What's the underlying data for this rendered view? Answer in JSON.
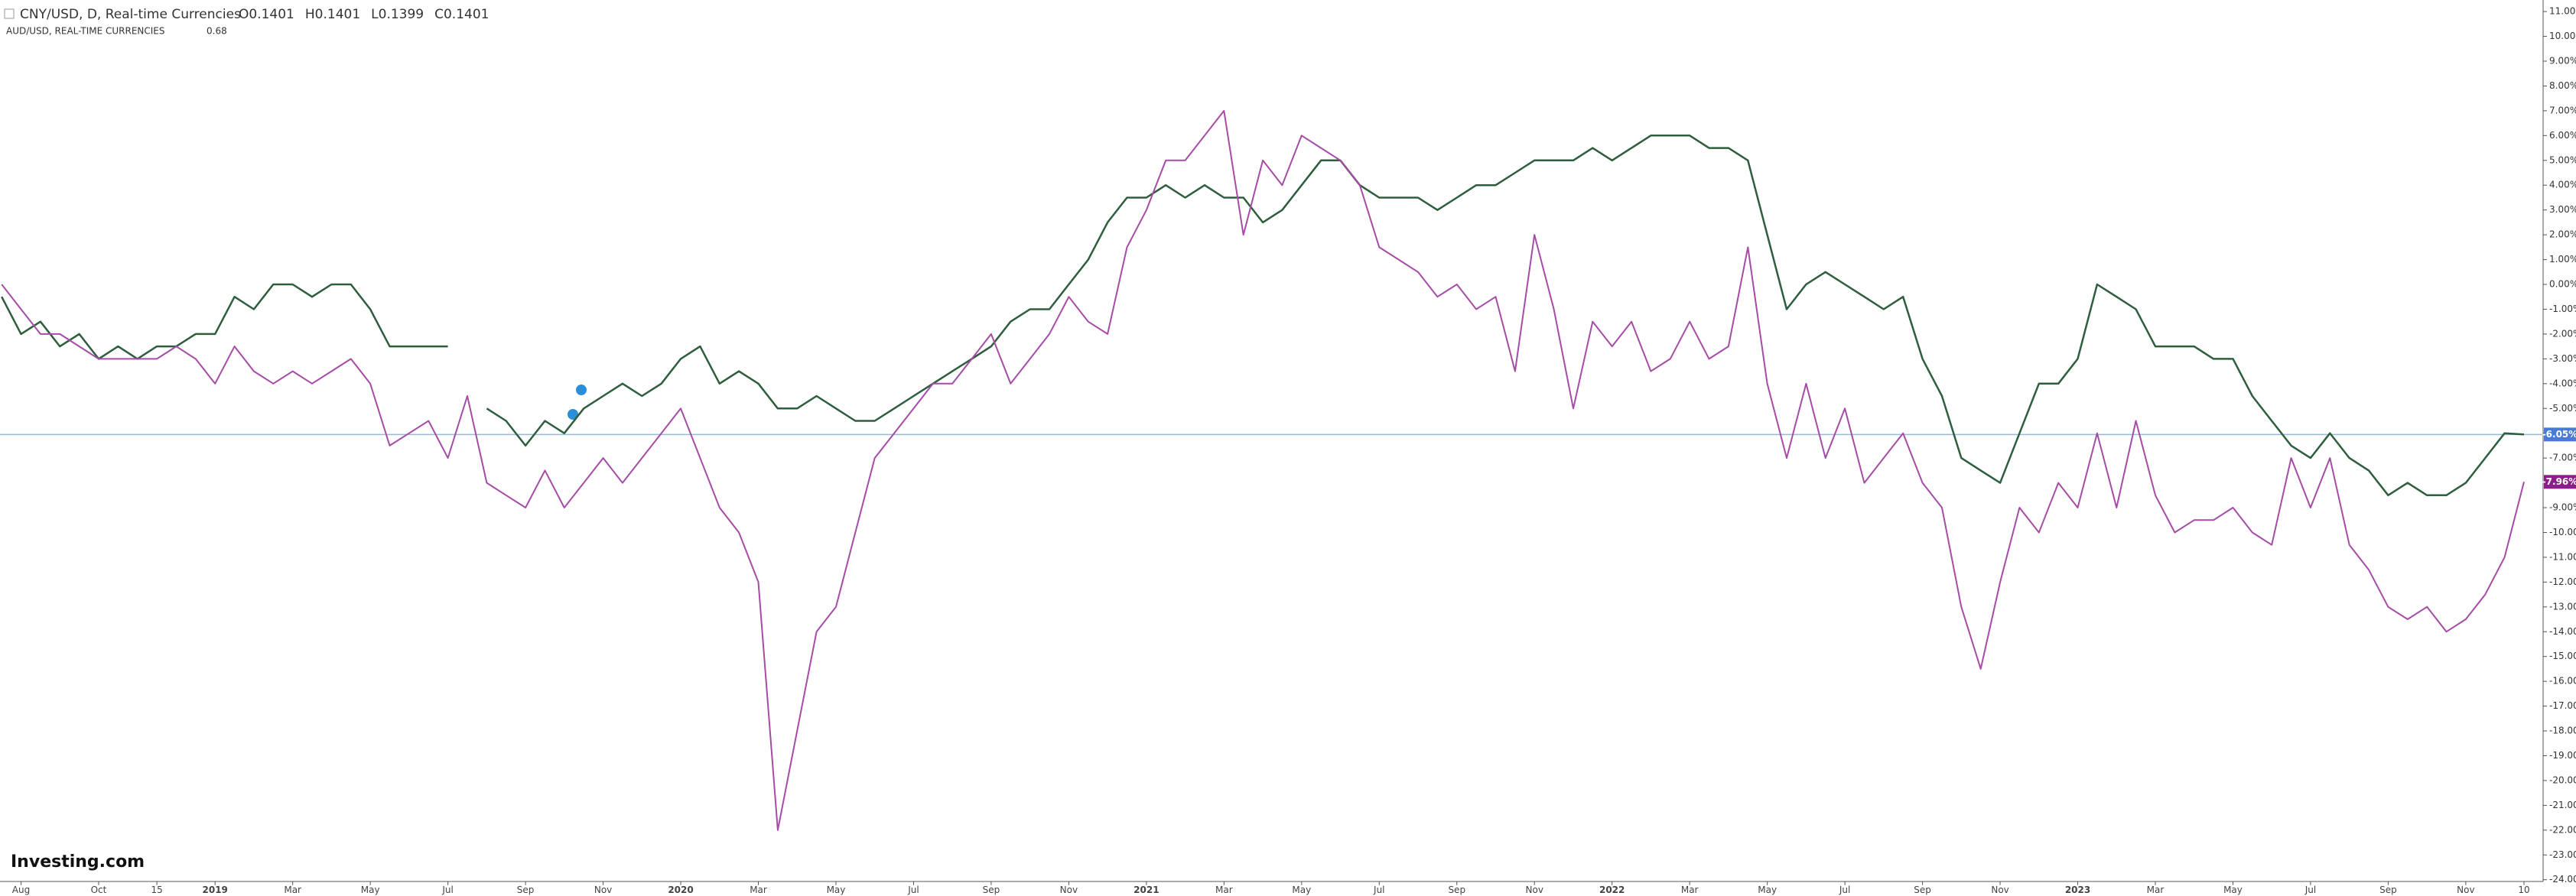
{
  "chart_data": {
    "type": "line",
    "header": {
      "title": "CNY/USD, D, Real-time Currencies",
      "ohlc": [
        "O0.1401",
        "H0.1401",
        "L0.1399",
        "C0.1401"
      ],
      "compare_title": "AUD/USD, REAL-TIME CURRENCIES",
      "compare_value": "0.68"
    },
    "logo": "Investing.com",
    "categories": [
      null,
      "Aug",
      null,
      null,
      null,
      "Oct",
      null,
      null,
      "15",
      null,
      null,
      "2019",
      null,
      null,
      null,
      "Mar",
      null,
      null,
      null,
      "May",
      null,
      null,
      null,
      "Jul",
      null,
      null,
      null,
      "Sep",
      null,
      null,
      null,
      "Nov",
      null,
      null,
      null,
      "2020",
      null,
      null,
      null,
      "Mar",
      null,
      null,
      null,
      "May",
      null,
      null,
      null,
      "Jul",
      null,
      null,
      null,
      "Sep",
      null,
      null,
      null,
      "Nov",
      null,
      null,
      null,
      "2021",
      null,
      null,
      null,
      "Mar",
      null,
      null,
      null,
      "May",
      null,
      null,
      null,
      "Jul",
      null,
      null,
      null,
      "Sep",
      null,
      null,
      null,
      "Nov",
      null,
      null,
      null,
      "2022",
      null,
      null,
      null,
      "Mar",
      null,
      null,
      null,
      "May",
      null,
      null,
      null,
      "Jul",
      null,
      null,
      null,
      "Sep",
      null,
      null,
      null,
      "Nov",
      null,
      null,
      null,
      "2023",
      null,
      null,
      null,
      "Mar",
      null,
      null,
      null,
      "May",
      null,
      null,
      null,
      "Jul",
      null,
      null,
      null,
      "Sep",
      null,
      null,
      null,
      "Nov",
      null,
      null,
      "10"
    ],
    "series": [
      {
        "name": "CNY/USD",
        "color": "#2e5e3e",
        "label_color": "#4a7bd4",
        "last_value_label": "-6.05%",
        "values": [
          -0.5,
          -2,
          -1.5,
          -2.5,
          -2,
          -3,
          -2.5,
          -3,
          -2.5,
          -2.5,
          -2,
          -2,
          -0.5,
          -1,
          0,
          0,
          -0.5,
          0,
          0,
          -1,
          -2.5,
          -2.5,
          -2.5,
          -2.5,
          null,
          -5,
          -5.5,
          -6.5,
          -5.5,
          -6,
          -5,
          -4.5,
          -4,
          -4.5,
          -4,
          -3,
          -2.5,
          -4,
          -3.5,
          -4,
          -5,
          -5,
          -4.5,
          -5,
          -5.5,
          -5.5,
          -5,
          -4.5,
          -4,
          -3.5,
          -3,
          -2.5,
          -1.5,
          -1,
          -1,
          0,
          1,
          2.5,
          3.5,
          3.5,
          4,
          3.5,
          4,
          3.5,
          3.5,
          2.5,
          3,
          4,
          5,
          5,
          4,
          3.5,
          3.5,
          3.5,
          3,
          3.5,
          4,
          4,
          4.5,
          5,
          5,
          5,
          5.5,
          5,
          5.5,
          6,
          6,
          6,
          5.5,
          5.5,
          5,
          2,
          -1,
          0,
          0.5,
          0,
          -0.5,
          -1,
          -0.5,
          -3,
          -4.5,
          -7,
          -7.5,
          -8,
          -6,
          -4,
          -4,
          -3,
          0,
          -0.5,
          -1,
          -2.5,
          -2.5,
          -2.5,
          -3,
          -3,
          -4.5,
          -5.5,
          -6.5,
          -7,
          -6,
          -7,
          -7.5,
          -8.5,
          -8,
          -8.5,
          -8.5,
          -8,
          -7,
          -6,
          -6.05
        ]
      },
      {
        "name": "AUD/USD",
        "color": "#a64ca6",
        "label_color": "#8a1e8a",
        "last_value_label": "-7.96%",
        "values": [
          0,
          -1,
          -2,
          -2,
          -2.5,
          -3,
          -3,
          -3,
          -3,
          -2.5,
          -3,
          -4,
          -2.5,
          -3.5,
          -4,
          -3.5,
          -4,
          -3.5,
          -3,
          -4,
          -6.5,
          -6,
          -5.5,
          -7,
          -4.5,
          -8,
          -8.5,
          -9,
          -7.5,
          -9,
          -8,
          -7,
          -8,
          -7,
          -6,
          -5,
          -7,
          -9,
          -10,
          -12,
          -22,
          -18,
          -14,
          -13,
          -10,
          -7,
          -6,
          -5,
          -4,
          -4,
          -3,
          -2,
          -4,
          -3,
          -2,
          -0.5,
          -1.5,
          -2,
          1.5,
          3,
          5,
          5,
          6,
          7,
          2,
          5,
          4,
          6,
          5.5,
          5,
          4,
          1.5,
          1,
          0.5,
          -0.5,
          0,
          -1,
          -0.5,
          -3.5,
          2,
          -1,
          -5,
          -1.5,
          -2.5,
          -1.5,
          -3.5,
          -3,
          -1.5,
          -3,
          -2.5,
          1.5,
          -4,
          -7,
          -4,
          -7,
          -5,
          -8,
          -7,
          -6,
          -8,
          -9,
          -13,
          -15.5,
          -12,
          -9,
          -10,
          -8,
          -9,
          -6,
          -9,
          -5.5,
          -8.5,
          -10,
          -9.5,
          -9.5,
          -9,
          -10,
          -10.5,
          -7,
          -9,
          -7,
          -10.5,
          -11.5,
          -13,
          -13.5,
          -13,
          -14,
          -13.5,
          -12.5,
          -11,
          -7.96
        ]
      }
    ],
    "ylim": [
      -24,
      11
    ],
    "yticks": [
      {
        "value": 11,
        "label": "11.00%"
      },
      {
        "value": 10,
        "label": "10.00%"
      },
      {
        "value": 9,
        "label": "9.00%"
      },
      {
        "value": 8,
        "label": "8.00%"
      },
      {
        "value": 7,
        "label": "7.00%"
      },
      {
        "value": 6,
        "label": "6.00%"
      },
      {
        "value": 5,
        "label": "5.00%"
      },
      {
        "value": 4,
        "label": "4.00%"
      },
      {
        "value": 3,
        "label": "3.00%"
      },
      {
        "value": 2,
        "label": "2.00%"
      },
      {
        "value": 1,
        "label": "1.00%"
      },
      {
        "value": 0,
        "label": "0.00%"
      },
      {
        "value": -1,
        "label": "-1.00%"
      },
      {
        "value": -2,
        "label": "-2.00%"
      },
      {
        "value": -3,
        "label": "-3.00%"
      },
      {
        "value": -4,
        "label": "-4.00%"
      },
      {
        "value": -5,
        "label": "-5.00%"
      },
      {
        "value": -6,
        "label": "-6.00%"
      },
      {
        "value": -7,
        "label": "-7.00%"
      },
      {
        "value": -8,
        "label": "-8.00%"
      },
      {
        "value": -9,
        "label": "-9.00%"
      },
      {
        "value": -10,
        "label": "-10.00%"
      },
      {
        "value": -11,
        "label": "-11.00%"
      },
      {
        "value": -12,
        "label": "-12.00%"
      },
      {
        "value": -13,
        "label": "-13.00%"
      },
      {
        "value": -14,
        "label": "-14.00%"
      },
      {
        "value": -15,
        "label": "-15.00%"
      },
      {
        "value": -16,
        "label": "-16.00%"
      },
      {
        "value": -17,
        "label": "-17.00%"
      },
      {
        "value": -18,
        "label": "-18.00%"
      },
      {
        "value": -19,
        "label": "-19.00%"
      },
      {
        "value": -20,
        "label": "-20.00%"
      },
      {
        "value": -21,
        "label": "-21.00%"
      },
      {
        "value": -22,
        "label": "-22.00%"
      },
      {
        "value": -23,
        "label": "-23.00%"
      },
      {
        "value": -24,
        "label": "-24.00%"
      }
    ],
    "grid": false,
    "price_line_color": "#9ab8d8"
  }
}
